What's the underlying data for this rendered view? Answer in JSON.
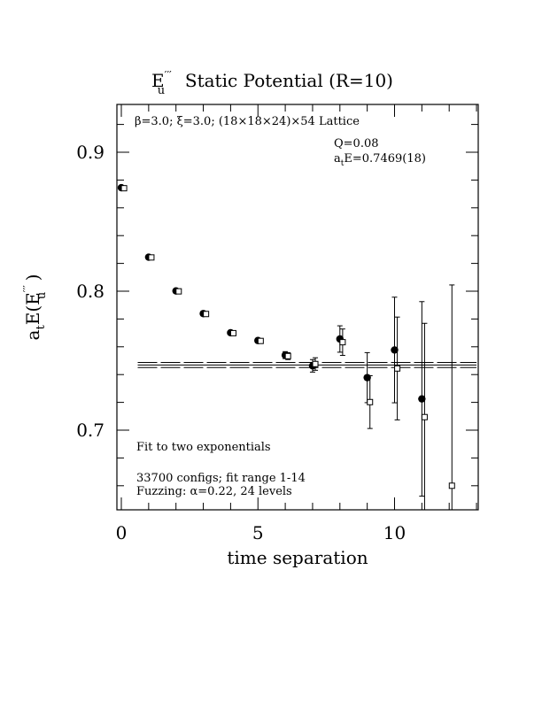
{
  "chart_data": {
    "type": "scatter",
    "title_parts": {
      "e_base": "E",
      "e_sub": "u",
      "e_sup": "′′′",
      "rest": "  Static Potential (R=10)"
    },
    "xlabel": "time separation",
    "ylabel_parts": {
      "prefix": "a",
      "prefix_sub": "t",
      "mid": "E(E",
      "sub": "u",
      "sup": "′′′",
      "suffix": " )"
    },
    "xlim": [
      0,
      13
    ],
    "ylim": [
      0.643,
      0.935
    ],
    "x_major_ticks": [
      0,
      5,
      10
    ],
    "x_tick_labels": [
      "0",
      "5",
      "10"
    ],
    "y_major_ticks": [
      0.7,
      0.8,
      0.9
    ],
    "y_tick_labels": [
      "0.7",
      "0.8",
      "0.9"
    ],
    "grid": false,
    "annotations": {
      "lattice_line": "β=3.0; ξ=3.0; (18×18×24)×54 Lattice",
      "q_value": "Q=0.08",
      "energy_prefix": "a",
      "energy_sub": "t",
      "energy_value": "E=0.7469(18)",
      "fit_note": "Fit to two exponentials",
      "configs_line": "33700 configs; fit range 1-14",
      "fuzzing_line": "Fuzzing: α=0.22, 24 levels"
    },
    "fit": {
      "value": 0.7469,
      "error": 0.0018,
      "x_range": [
        0.6,
        13
      ]
    },
    "series": [
      {
        "marker": "filled-circle",
        "x": [
          0,
          1,
          2,
          3,
          4,
          5,
          6,
          7,
          8,
          9,
          10,
          11
        ],
        "y": [
          0.8745,
          0.8245,
          0.8002,
          0.7839,
          0.7701,
          0.7645,
          0.754,
          0.7463,
          0.7656,
          0.7378,
          0.7577,
          0.7225
        ],
        "err": [
          0.0012,
          0.0012,
          0.0012,
          0.0015,
          0.0015,
          0.0015,
          0.0025,
          0.0045,
          0.0095,
          0.018,
          0.038,
          0.07
        ]
      },
      {
        "marker": "open-square",
        "x": [
          0.1,
          1.1,
          2.1,
          3.1,
          4.1,
          5.1,
          6.1,
          7.1,
          8.1,
          9.1,
          10.1,
          11.1,
          12.1
        ],
        "y": [
          0.8741,
          0.8243,
          0.7999,
          0.7836,
          0.7698,
          0.7642,
          0.7533,
          0.7476,
          0.7633,
          0.7202,
          0.7444,
          0.7094,
          0.66
        ],
        "err": [
          0.0012,
          0.0012,
          0.0012,
          0.0015,
          0.0015,
          0.0015,
          0.0025,
          0.0045,
          0.0095,
          0.019,
          0.037,
          0.0675,
          0.1445
        ]
      }
    ]
  }
}
